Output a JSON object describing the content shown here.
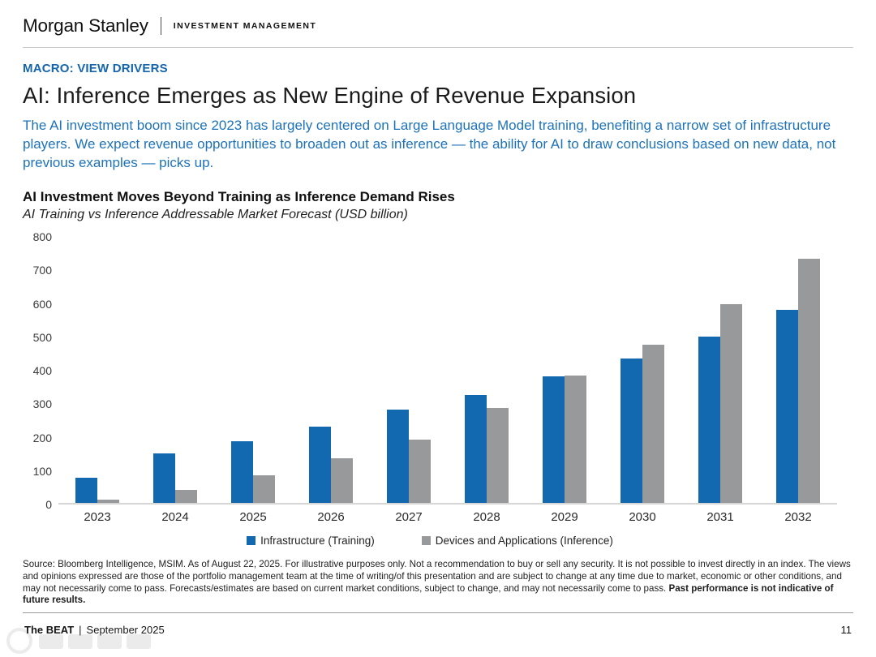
{
  "header": {
    "brand": "Morgan Stanley",
    "division": "INVESTMENT MANAGEMENT",
    "eyebrow": "MACRO: VIEW DRIVERS",
    "title": "AI: Inference Emerges as New Engine of Revenue Expansion",
    "lead": "The AI investment boom since 2023 has largely centered on Large Language Model training, benefiting a narrow set of infrastructure players. We expect revenue opportunities to broaden out as inference — the ability for AI to draw conclusions based on new data, not previous examples — picks up."
  },
  "chart_data": {
    "type": "bar",
    "title": "AI Investment Moves Beyond Training as Inference Demand Rises",
    "subtitle": "AI Training vs Inference Addressable Market Forecast (USD billion)",
    "categories": [
      "2023",
      "2024",
      "2025",
      "2026",
      "2027",
      "2028",
      "2029",
      "2030",
      "2031",
      "2032"
    ],
    "series": [
      {
        "name": "Infrastructure (Training)",
        "color_key": "training_blue",
        "values": [
          75,
          150,
          185,
          230,
          280,
          325,
          380,
          435,
          500,
          580
        ]
      },
      {
        "name": "Devices and Applications (Inference)",
        "color_key": "inference_gray",
        "values": [
          10,
          38,
          83,
          135,
          190,
          285,
          383,
          475,
          598,
          735
        ]
      }
    ],
    "xlabel": "",
    "ylabel": "",
    "ylim": [
      0,
      800
    ],
    "yticks": [
      0,
      100,
      200,
      300,
      400,
      500,
      600,
      700,
      800
    ],
    "grid": false,
    "legend_position": "bottom-center"
  },
  "disclaimer": {
    "text": "Source: Bloomberg Intelligence, MSIM. As of August 22, 2025. For illustrative purposes only. Not a recommendation to buy or sell any security. It is not possible to invest directly in an index. The views and opinions expressed are those of the portfolio management team at the time of writing/of this presentation and are subject to change at any time due to market, economic or other conditions, and may not necessarily come to pass.  Forecasts/estimates are based on current market conditions, subject to change, and may not necessarily come to pass. ",
    "bold_text": "Past performance is not indicative of future results."
  },
  "footer": {
    "publication": "The BEAT",
    "separator": "|",
    "date": "September 2025",
    "page": "11"
  },
  "colors": {
    "training_blue": "#1269b0",
    "inference_gray": "#97999b",
    "text_blue": "#1d72b8",
    "eyebrow_blue": "#1565ac",
    "baseline_gray": "#d6d6d6"
  }
}
